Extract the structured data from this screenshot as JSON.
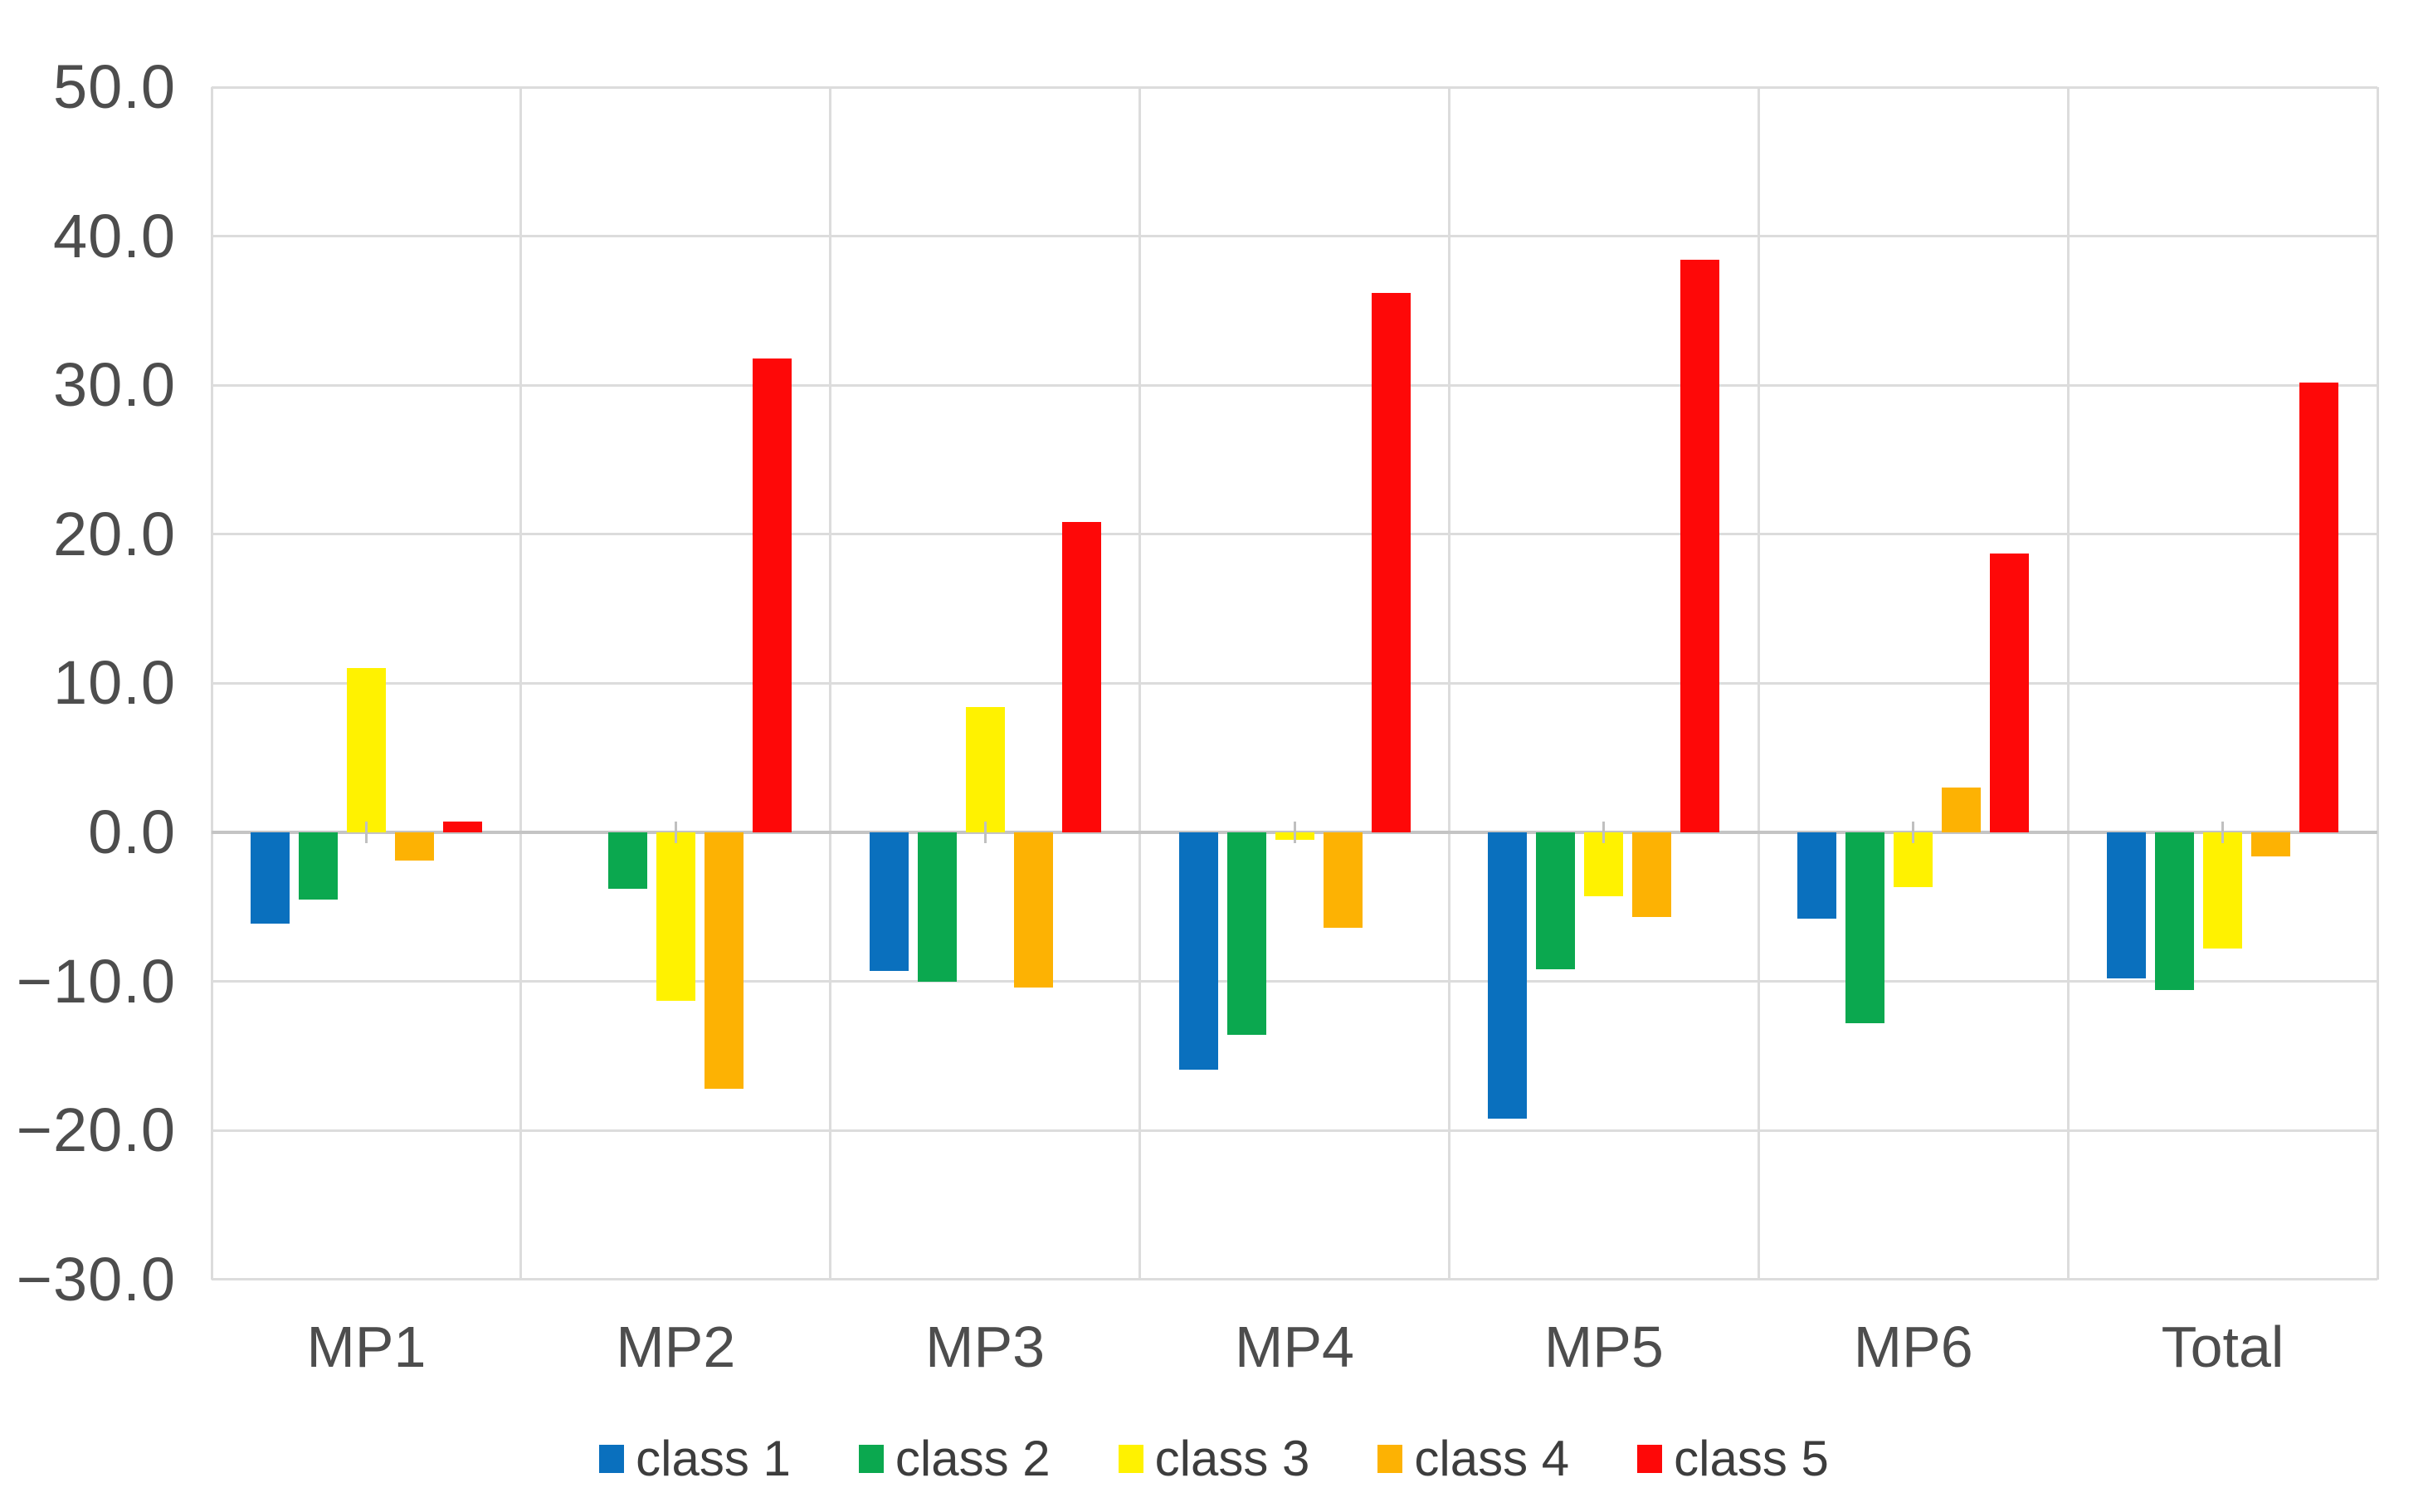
{
  "chart_data": {
    "type": "bar",
    "title": "",
    "xlabel": "",
    "ylabel": "",
    "categories": [
      "MP1",
      "MP2",
      "MP3",
      "MP4",
      "MP5",
      "MP6",
      "Total"
    ],
    "series": [
      {
        "name": "class 1",
        "color": "#0A70BE",
        "values": [
          -6.1,
          0.0,
          -9.3,
          -15.9,
          -19.2,
          -5.8,
          -9.8
        ]
      },
      {
        "name": "class 2",
        "color": "#0BA84F",
        "values": [
          -4.5,
          -3.8,
          -10.0,
          -13.6,
          -9.2,
          -12.8,
          -10.6
        ]
      },
      {
        "name": "class 3",
        "color": "#FFF200",
        "values": [
          11.0,
          -11.3,
          8.4,
          -0.5,
          -4.3,
          -3.7,
          -7.8
        ]
      },
      {
        "name": "class 4",
        "color": "#FDB203",
        "values": [
          -1.9,
          -17.2,
          -10.4,
          -6.4,
          -5.7,
          3.0,
          -1.6
        ]
      },
      {
        "name": "class 5",
        "color": "#FE0808",
        "values": [
          0.7,
          31.8,
          20.8,
          36.2,
          38.4,
          18.7,
          30.2
        ]
      }
    ],
    "ylim": [
      -30,
      50
    ],
    "ytick_step": 10,
    "ytick_labels": [
      "50.0",
      "40.0",
      "30.0",
      "20.0",
      "10.0",
      "0.0",
      "−10.0",
      "−20.0",
      "−30.0"
    ],
    "grid": true,
    "legend_position": "bottom",
    "colors": {
      "grid": "#DCDCDC",
      "zero_axis": "#C4C4C4",
      "category_tick": "#C0C0C0",
      "axis_text": "#4D4D4D",
      "legend_text": "#3D3D3D",
      "background": "#FFFFFF"
    }
  }
}
